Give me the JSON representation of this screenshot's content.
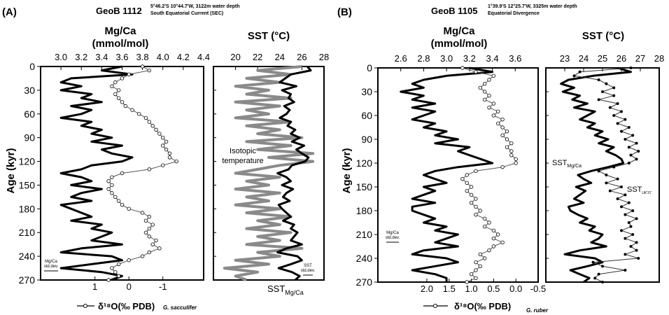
{
  "chart_data": [
    {
      "type": "line",
      "panel_label": "(A)",
      "core": "GeoB 1112",
      "site_line1": "5°46.2'S 10°44.7'W, 3122m water depth",
      "site_line2": "South Equatorial Current (SEC)",
      "ylabel": "Age (kyr)",
      "ylim": [
        0,
        270
      ],
      "yticks": [
        "0",
        "30",
        "60",
        "90",
        "120",
        "150",
        "180",
        "210",
        "240",
        "270"
      ],
      "mgca_label_1": "Mg/Ca",
      "mgca_label_2": "(mmol/mol)",
      "mgca_lim": [
        2.8,
        4.4
      ],
      "mgca_ticks": [
        "3.0",
        "3.2",
        "3.4",
        "3.6",
        "3.8",
        "4.0",
        "4.2",
        "4.4"
      ],
      "d18o_label": "δ¹⁸O(‰ PDB)",
      "d18o_species": "G. sacculifer",
      "d18o_ticks": [
        "1",
        "0",
        "-1"
      ],
      "sst_label": "SST (°C)",
      "sst_lim": [
        18,
        28
      ],
      "sst_ticks": [
        "20",
        "22",
        "24",
        "26",
        "28"
      ],
      "mgca_stddev_label_1": "Mg/Ca",
      "mgca_stddev_label_2": "std.dev.",
      "sst_stddev_label_1": "SST",
      "sst_stddev_label_2": "std.dev.",
      "annotation_isotopic_1": "Isotopic",
      "annotation_isotopic_2": "temperature",
      "annotation_sst_mgca": "SST",
      "annotation_sst_mgca_sub": "Mg/Ca",
      "series": [
        {
          "name": "Mg/Ca",
          "age": [
            0,
            5,
            10,
            15,
            20,
            25,
            30,
            35,
            40,
            45,
            50,
            55,
            60,
            65,
            70,
            75,
            80,
            85,
            90,
            95,
            100,
            105,
            110,
            115,
            120,
            125,
            130,
            135,
            140,
            145,
            150,
            155,
            160,
            165,
            170,
            175,
            180,
            185,
            190,
            195,
            200,
            205,
            210,
            215,
            220,
            225,
            230,
            235,
            240,
            245,
            250,
            255,
            260,
            265,
            270
          ],
          "values": [
            3.6,
            3.4,
            3.7,
            3.1,
            3.0,
            3.2,
            3.0,
            3.3,
            3.2,
            3.4,
            3.1,
            3.3,
            3.2,
            3.0,
            3.3,
            3.2,
            3.4,
            3.3,
            3.5,
            3.3,
            3.6,
            3.4,
            3.5,
            3.7,
            3.6,
            3.3,
            3.2,
            3.0,
            3.2,
            3.3,
            3.1,
            3.4,
            3.2,
            3.1,
            3.3,
            3.0,
            3.1,
            3.2,
            3.3,
            3.1,
            3.4,
            3.3,
            3.5,
            3.4,
            3.3,
            3.6,
            3.2,
            3.0,
            3.5,
            3.6,
            3.3,
            3.0,
            3.4,
            3.6,
            3.5
          ]
        },
        {
          "name": "δ18O",
          "age": [
            0,
            5,
            10,
            15,
            20,
            25,
            30,
            35,
            40,
            45,
            50,
            55,
            60,
            65,
            70,
            75,
            80,
            85,
            90,
            95,
            100,
            105,
            110,
            115,
            120,
            125,
            130,
            135,
            140,
            145,
            150,
            155,
            160,
            165,
            170,
            175,
            180,
            185,
            190,
            195,
            200,
            205,
            210,
            215,
            220,
            225,
            230,
            235,
            240,
            245,
            250,
            255,
            260,
            265,
            270
          ],
          "values": [
            -0.4,
            -0.6,
            0.0,
            0.2,
            0.4,
            0.5,
            0.3,
            0.4,
            0.3,
            0.2,
            0.1,
            -0.1,
            -0.3,
            -0.5,
            -0.6,
            -0.7,
            -0.8,
            -0.9,
            -1.0,
            -1.1,
            -1.0,
            -1.1,
            -1.2,
            -1.2,
            -1.4,
            -1.0,
            -0.6,
            0.2,
            0.5,
            0.6,
            0.5,
            0.6,
            0.5,
            0.4,
            0.3,
            0.2,
            0.0,
            -0.4,
            -0.6,
            -0.5,
            -0.7,
            -0.6,
            -0.5,
            -0.6,
            -0.8,
            -0.7,
            -0.9,
            -0.6,
            -0.4,
            0.0,
            0.3,
            0.5,
            0.4,
            0.3,
            0.6
          ]
        },
        {
          "name": "Isotopic temperature",
          "age": [
            0,
            5,
            10,
            15,
            20,
            25,
            30,
            35,
            40,
            45,
            50,
            55,
            60,
            65,
            70,
            75,
            80,
            85,
            90,
            95,
            100,
            105,
            110,
            115,
            120,
            125,
            130,
            135,
            140,
            145,
            150,
            155,
            160,
            165,
            170,
            175,
            180,
            185,
            190,
            195,
            200,
            205,
            210,
            215,
            220,
            225,
            230,
            235,
            240,
            245,
            250,
            255,
            260,
            265,
            270
          ],
          "values": [
            26,
            22,
            25,
            21,
            24,
            20,
            23,
            21,
            25,
            20,
            24,
            21,
            23,
            20,
            25,
            21,
            24,
            22,
            26,
            21,
            25,
            22,
            27,
            23,
            27,
            24,
            22,
            20,
            24,
            21,
            23,
            20,
            24,
            21,
            23,
            20,
            24,
            21,
            25,
            22,
            24,
            21,
            25,
            22,
            24,
            21,
            26,
            22,
            24,
            20,
            23,
            19,
            22,
            20,
            21
          ]
        },
        {
          "name": "SST Mg/Ca",
          "age": [
            0,
            5,
            10,
            15,
            20,
            25,
            30,
            35,
            40,
            45,
            50,
            55,
            60,
            65,
            70,
            75,
            80,
            85,
            90,
            95,
            100,
            105,
            110,
            115,
            120,
            125,
            130,
            135,
            140,
            145,
            150,
            155,
            160,
            165,
            170,
            175,
            180,
            185,
            190,
            195,
            200,
            205,
            210,
            215,
            220,
            225,
            230,
            235,
            240,
            245,
            250,
            255,
            260,
            265,
            270
          ],
          "values": [
            26.5,
            26.8,
            25.0,
            24.5,
            24.0,
            25.5,
            24.2,
            25.0,
            24.8,
            25.3,
            24.4,
            24.9,
            24.6,
            24.0,
            25.0,
            24.7,
            25.4,
            25.0,
            25.8,
            25.1,
            26.2,
            25.5,
            26.0,
            26.6,
            26.3,
            25.1,
            24.8,
            23.8,
            24.6,
            25.0,
            24.2,
            25.2,
            24.6,
            24.3,
            24.9,
            23.9,
            24.2,
            24.6,
            25.0,
            24.3,
            25.3,
            25.0,
            25.6,
            25.3,
            25.0,
            26.0,
            24.6,
            23.8,
            25.6,
            26.0,
            25.0,
            23.9,
            25.1,
            25.8,
            25.4
          ]
        }
      ]
    },
    {
      "type": "line",
      "panel_label": "(B)",
      "core": "GeoB 1105",
      "site_line1": "1°39.9'S 12°25.7'W, 3325m water depth",
      "site_line2": "Equatorial Divergence",
      "ylabel": "Age (kyr)",
      "ylim": [
        0,
        270
      ],
      "yticks": [
        "0",
        "30",
        "60",
        "90",
        "120",
        "150",
        "180",
        "210",
        "240",
        "270"
      ],
      "mgca_label_1": "Mg/Ca",
      "mgca_label_2": "(mmol/mol)",
      "mgca_lim": [
        2.4,
        3.8
      ],
      "mgca_ticks": [
        "2.6",
        "2.8",
        "3.0",
        "3.2",
        "3.4",
        "3.6"
      ],
      "d18o_label": "δ¹⁸O(‰ PDB)",
      "d18o_species": "G. ruber",
      "d18o_ticks": [
        "2.0",
        "1.5",
        "1.0",
        "0.5",
        "0.0",
        "-0.5"
      ],
      "sst_label": "SST (°C)",
      "sst_lim": [
        22,
        28
      ],
      "sst_ticks": [
        "23",
        "24",
        "25",
        "26",
        "27",
        "28"
      ],
      "mgca_stddev_label_1": "Mg/Ca",
      "mgca_stddev_label_2": "std.dev.",
      "annotation_sst_mgca": "SST",
      "annotation_sst_mgca_sub": "Mg/Ca",
      "annotation_sst_uk": "SST",
      "annotation_sst_uk_sub": "UK'37",
      "series": [
        {
          "name": "Mg/Ca",
          "age": [
            0,
            5,
            10,
            15,
            20,
            25,
            30,
            35,
            40,
            45,
            50,
            55,
            60,
            65,
            70,
            75,
            80,
            85,
            90,
            95,
            100,
            105,
            110,
            115,
            120,
            125,
            130,
            135,
            140,
            145,
            150,
            155,
            160,
            165,
            170,
            175,
            180,
            185,
            190,
            195,
            200,
            205,
            210,
            215,
            220,
            225,
            230,
            235,
            240,
            245,
            250,
            255,
            260,
            265,
            270
          ],
          "values": [
            3.2,
            3.4,
            3.0,
            2.8,
            2.7,
            2.8,
            2.6,
            2.8,
            2.7,
            2.9,
            2.7,
            2.9,
            2.8,
            2.7,
            2.9,
            2.8,
            3.0,
            2.9,
            3.1,
            2.9,
            3.2,
            3.1,
            3.2,
            3.3,
            3.4,
            3.1,
            2.9,
            2.8,
            2.9,
            3.0,
            2.8,
            2.9,
            2.8,
            2.7,
            2.9,
            2.7,
            2.7,
            2.8,
            2.9,
            2.8,
            3.0,
            2.9,
            3.1,
            3.0,
            2.9,
            3.1,
            2.8,
            2.7,
            3.0,
            3.1,
            2.9,
            2.7,
            2.9,
            3.0,
            3.0
          ]
        },
        {
          "name": "δ18O",
          "age": [
            0,
            5,
            10,
            15,
            20,
            25,
            30,
            35,
            40,
            45,
            50,
            55,
            60,
            65,
            70,
            75,
            80,
            85,
            90,
            95,
            100,
            105,
            110,
            115,
            120,
            125,
            130,
            135,
            140,
            145,
            150,
            155,
            160,
            165,
            170,
            175,
            180,
            185,
            190,
            195,
            200,
            205,
            210,
            215,
            220,
            225,
            230,
            235,
            240,
            245,
            250,
            255,
            260,
            265,
            270
          ],
          "values": [
            1.2,
            0.9,
            0.5,
            0.6,
            0.7,
            0.8,
            0.7,
            0.6,
            0.7,
            0.5,
            0.6,
            0.4,
            0.5,
            0.3,
            0.4,
            0.3,
            0.2,
            0.3,
            0.2,
            0.1,
            0.2,
            0.1,
            0.1,
            0.0,
            0.0,
            0.3,
            0.9,
            1.1,
            1.2,
            1.1,
            1.0,
            1.1,
            1.0,
            0.9,
            1.0,
            0.9,
            0.8,
            0.9,
            0.7,
            0.6,
            0.7,
            0.5,
            0.4,
            0.5,
            0.3,
            0.5,
            0.6,
            0.8,
            0.7,
            0.9,
            0.8,
            0.9,
            1.0,
            0.9,
            1.1
          ]
        },
        {
          "name": "SST Mg/Ca",
          "age": [
            0,
            5,
            10,
            15,
            20,
            25,
            30,
            35,
            40,
            45,
            50,
            55,
            60,
            65,
            70,
            75,
            80,
            85,
            90,
            95,
            100,
            105,
            110,
            115,
            120,
            125,
            130,
            135,
            140,
            145,
            150,
            155,
            160,
            165,
            170,
            175,
            180,
            185,
            190,
            195,
            200,
            205,
            210,
            215,
            220,
            225,
            230,
            235,
            240,
            245,
            250,
            255,
            260,
            265,
            270
          ],
          "values": [
            25.8,
            26.5,
            24.5,
            23.2,
            22.8,
            23.5,
            22.9,
            23.8,
            23.4,
            24.2,
            23.5,
            24.6,
            24.2,
            23.8,
            24.6,
            24.2,
            25.0,
            24.6,
            25.3,
            24.8,
            25.6,
            25.2,
            25.7,
            26.0,
            26.1,
            25.3,
            24.4,
            23.7,
            24.0,
            24.4,
            23.6,
            24.1,
            23.8,
            23.5,
            24.0,
            23.2,
            23.3,
            23.7,
            24.2,
            23.8,
            24.6,
            24.3,
            25.0,
            24.8,
            24.4,
            25.2,
            23.8,
            23.0,
            24.6,
            25.0,
            24.2,
            23.3,
            23.8,
            24.3,
            24.0
          ]
        },
        {
          "name": "SST UK'37",
          "age": [
            0,
            5,
            10,
            15,
            20,
            25,
            30,
            35,
            40,
            45,
            50,
            55,
            60,
            65,
            70,
            75,
            80,
            85,
            90,
            95,
            100,
            105,
            110,
            115,
            120,
            125,
            130,
            135,
            140,
            145,
            150,
            155,
            160,
            165,
            170,
            175,
            180,
            185,
            190,
            195,
            200,
            205,
            210,
            215,
            220,
            225,
            230,
            235,
            240,
            245,
            250,
            255,
            260,
            265,
            270
          ],
          "values": [
            26.5,
            23.8,
            23.5,
            24.8,
            25.2,
            25.6,
            25.0,
            25.6,
            24.8,
            25.8,
            25.4,
            26.0,
            25.6,
            26.2,
            25.8,
            26.4,
            26.0,
            26.6,
            26.2,
            26.8,
            26.4,
            26.9,
            26.5,
            26.8,
            26.4,
            25.6,
            24.8,
            25.2,
            25.8,
            25.2,
            26.0,
            25.4,
            26.2,
            25.8,
            26.4,
            26.0,
            26.6,
            26.2,
            26.8,
            26.4,
            26.5,
            26.0,
            26.6,
            26.2,
            26.8,
            26.5,
            26.8,
            26.2,
            26.9,
            24.5,
            25.0,
            26.2,
            24.8,
            24.6,
            25.0
          ]
        }
      ]
    }
  ]
}
